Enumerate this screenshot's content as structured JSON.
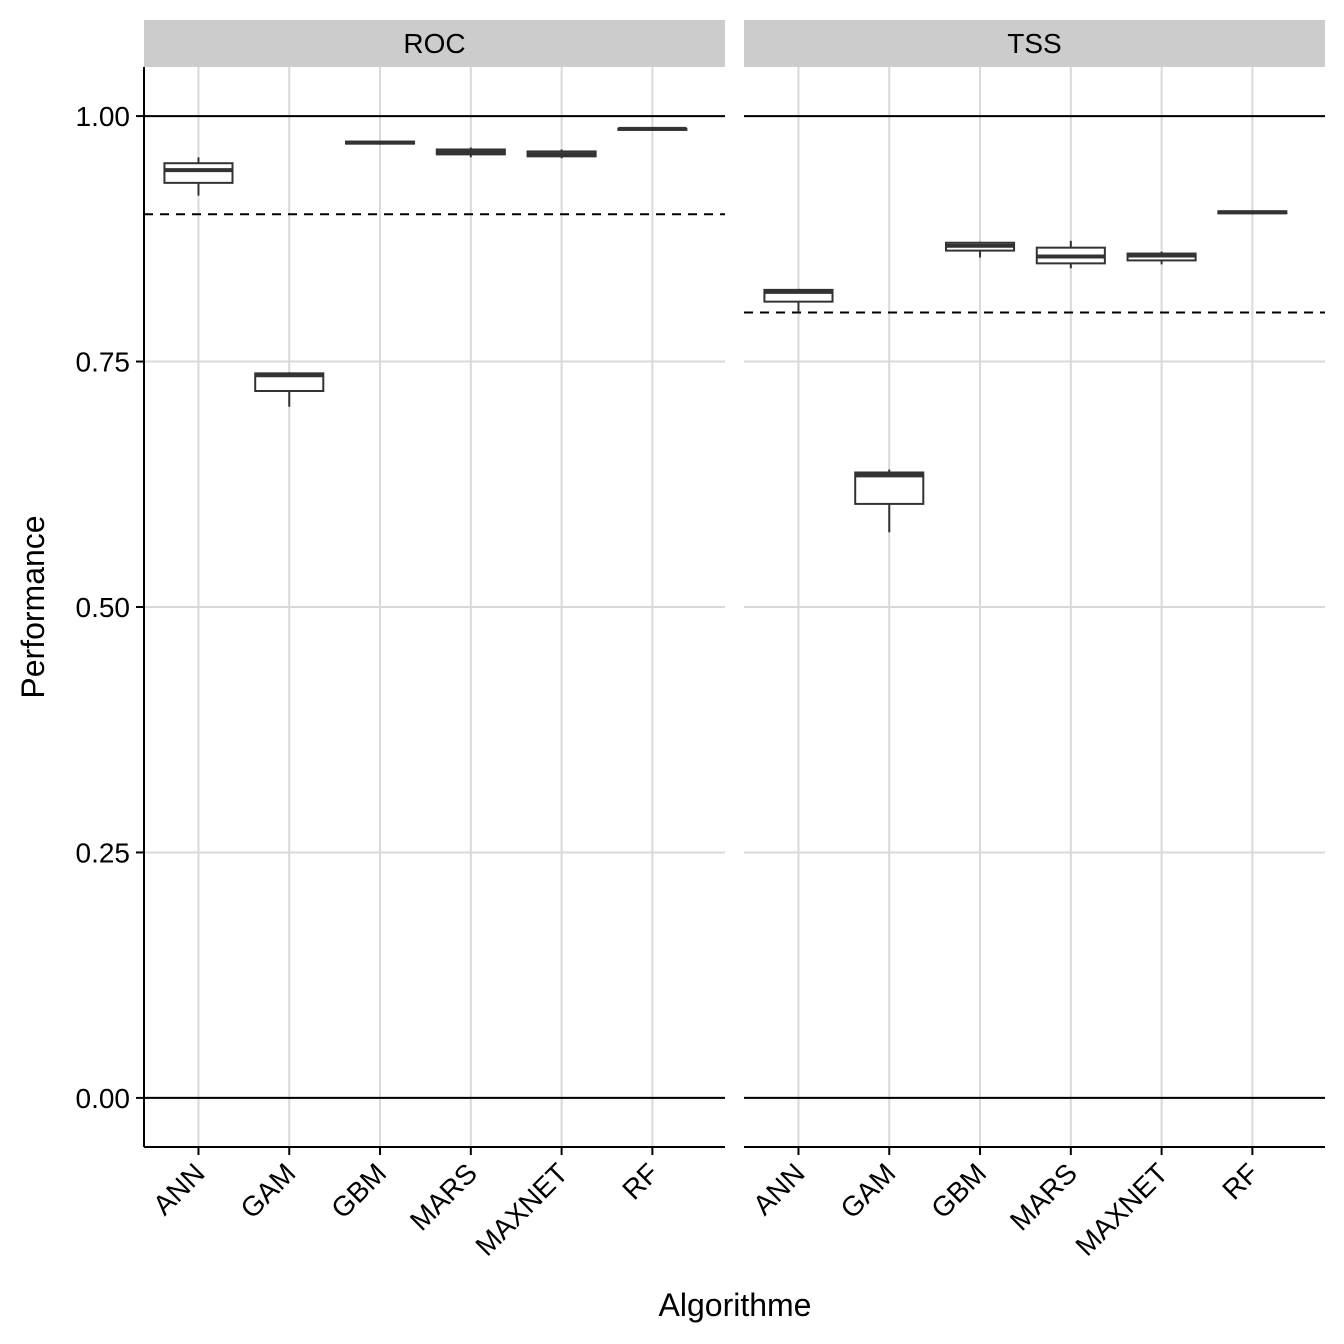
{
  "chart_data": {
    "type": "boxplot",
    "xlabel": "Algorithme",
    "ylabel": "Performance",
    "ylim": [
      -0.05,
      1.05
    ],
    "y_ticks": [
      0.0,
      0.25,
      0.5,
      0.75,
      1.0
    ],
    "y_tick_labels": [
      "0.00",
      "0.25",
      "0.50",
      "0.75",
      "1.00"
    ],
    "categories": [
      "ANN",
      "GAM",
      "GBM",
      "MARS",
      "MAXNET",
      "RF"
    ],
    "grid": true,
    "solid_reference_lines": [
      0.0,
      1.0
    ],
    "panels": [
      {
        "title": "ROC",
        "threshold": 0.9,
        "boxes": [
          {
            "category": "ANN",
            "min": 0.919,
            "q1": 0.932,
            "median": 0.945,
            "q3": 0.952,
            "max": 0.958
          },
          {
            "category": "GAM",
            "min": 0.704,
            "q1": 0.72,
            "median": 0.736,
            "q3": 0.738,
            "max": 0.739
          },
          {
            "category": "GBM",
            "min": 0.971,
            "q1": 0.972,
            "median": 0.973,
            "q3": 0.974,
            "max": 0.974
          },
          {
            "category": "MARS",
            "min": 0.958,
            "q1": 0.961,
            "median": 0.963,
            "q3": 0.966,
            "max": 0.968
          },
          {
            "category": "MAXNET",
            "min": 0.957,
            "q1": 0.959,
            "median": 0.961,
            "q3": 0.964,
            "max": 0.966
          },
          {
            "category": "RF",
            "min": 0.986,
            "q1": 0.986,
            "median": 0.987,
            "q3": 0.987,
            "max": 0.988
          }
        ]
      },
      {
        "title": "TSS",
        "threshold": 0.8,
        "boxes": [
          {
            "category": "ANN",
            "min": 0.8,
            "q1": 0.811,
            "median": 0.821,
            "q3": 0.823,
            "max": 0.824
          },
          {
            "category": "GAM",
            "min": 0.576,
            "q1": 0.605,
            "median": 0.634,
            "q3": 0.637,
            "max": 0.64
          },
          {
            "category": "GBM",
            "min": 0.856,
            "q1": 0.863,
            "median": 0.868,
            "q3": 0.871,
            "max": 0.872
          },
          {
            "category": "MARS",
            "min": 0.845,
            "q1": 0.85,
            "median": 0.857,
            "q3": 0.866,
            "max": 0.873
          },
          {
            "category": "MAXNET",
            "min": 0.849,
            "q1": 0.853,
            "median": 0.858,
            "q3": 0.86,
            "max": 0.862
          },
          {
            "category": "RF",
            "min": 0.9,
            "q1": 0.901,
            "median": 0.902,
            "q3": 0.903,
            "max": 0.904
          }
        ]
      }
    ]
  },
  "colors": {
    "strip_background": "#cccccc",
    "grid": "#d9d9d9",
    "box_line": "#333333",
    "axis": "#000000"
  }
}
